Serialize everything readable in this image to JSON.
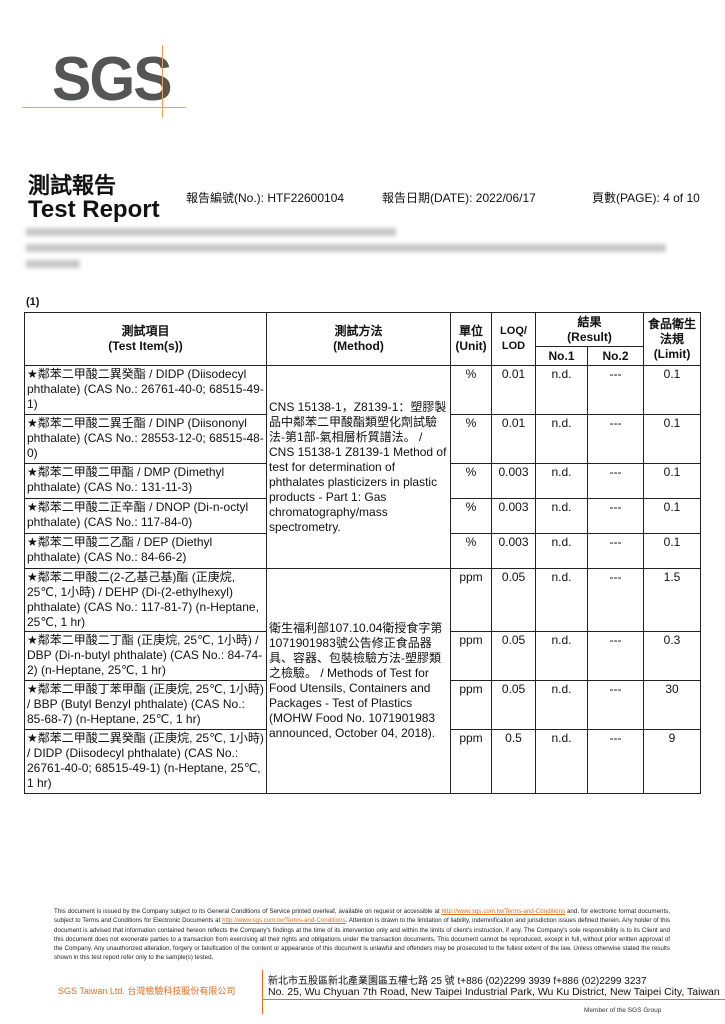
{
  "logo": {
    "text": "SGS",
    "accent": "#f0a050"
  },
  "header": {
    "title_zh": "測試報告",
    "title_en": "Test Report",
    "report_no": "報告編號(No.): HTF22600104",
    "report_date": "報告日期(DATE): 2022/06/17",
    "page": "頁數(PAGE): 4 of 10"
  },
  "section_label": "(1)",
  "table": {
    "headers": {
      "item": "測試項目\n(Test Item(s))",
      "method": "測試方法\n(Method)",
      "unit": "單位\n(Unit)",
      "loq": "LOQ/\nLOD",
      "result": "結果\n(Result)",
      "no1": "No.1",
      "no2": "No.2",
      "limit": "食品衛生\n法規\n(Limit)"
    },
    "methods": [
      "CNS 15138-1，Z8139-1：塑膠製品中鄰苯二甲酸酯類塑化劑試驗法-第1部-氣相層析質譜法。 / CNS 15138-1 Z8139-1 Method of test for determination of phthalates plasticizers in plastic products - Part 1: Gas chromatography/mass spectrometry.",
      "衛生福利部107.10.04衛授食字第1071901983號公告修正食品器具、容器、包裝檢驗方法-塑膠類之檢驗。 / Methods of Test for Food Utensils, Containers and Packages - Test of Plastics (MOHW Food No. 1071901983 announced, October 04, 2018)."
    ],
    "rows": [
      {
        "item": "★鄰苯二甲酸二異癸酯 / DIDP (Diisodecyl phthalate) (CAS No.: 26761-40-0; 68515-49-1)",
        "unit": "%",
        "loq": "0.01",
        "no1": "n.d.",
        "no2": "---",
        "limit": "0.1"
      },
      {
        "item": "★鄰苯二甲酸二異壬酯 / DINP (Diisononyl phthalate) (CAS No.: 28553-12-0; 68515-48-0)",
        "unit": "%",
        "loq": "0.01",
        "no1": "n.d.",
        "no2": "---",
        "limit": "0.1"
      },
      {
        "item": "★鄰苯二甲酸二甲酯 / DMP (Dimethyl phthalate) (CAS No.: 131-11-3)",
        "unit": "%",
        "loq": "0.003",
        "no1": "n.d.",
        "no2": "---",
        "limit": "0.1"
      },
      {
        "item": "★鄰苯二甲酸二正辛酯 / DNOP (Di-n-octyl phthalate) (CAS No.: 117-84-0)",
        "unit": "%",
        "loq": "0.003",
        "no1": "n.d.",
        "no2": "---",
        "limit": "0.1"
      },
      {
        "item": "★鄰苯二甲酸二乙酯 / DEP (Diethyl phthalate) (CAS No.: 84-66-2)",
        "unit": "%",
        "loq": "0.003",
        "no1": "n.d.",
        "no2": "---",
        "limit": "0.1"
      },
      {
        "item": "★鄰苯二甲酸二(2-乙基己基)酯 (正庚烷, 25℃, 1小時) / DEHP (Di-(2-ethylhexyl) phthalate) (CAS No.: 117-81-7) (n-Heptane, 25℃, 1 hr)",
        "unit": "ppm",
        "loq": "0.05",
        "no1": "n.d.",
        "no2": "---",
        "limit": "1.5"
      },
      {
        "item": "★鄰苯二甲酸二丁酯 (正庚烷, 25℃, 1小時) / DBP (Di-n-butyl phthalate) (CAS No.: 84-74-2) (n-Heptane, 25℃, 1 hr)",
        "unit": "ppm",
        "loq": "0.05",
        "no1": "n.d.",
        "no2": "---",
        "limit": "0.3"
      },
      {
        "item": "★鄰苯二甲酸丁苯甲酯 (正庚烷, 25℃, 1小時) / BBP (Butyl Benzyl phthalate) (CAS No.: 85-68-7) (n-Heptane, 25℃, 1 hr)",
        "unit": "ppm",
        "loq": "0.05",
        "no1": "n.d.",
        "no2": "---",
        "limit": "30"
      },
      {
        "item": "★鄰苯二甲酸二異癸酯 (正庚烷, 25℃, 1小時) / DIDP (Diisodecyl phthalate) (CAS No.: 26761-40-0; 68515-49-1) (n-Heptane, 25℃, 1 hr)",
        "unit": "ppm",
        "loq": "0.5",
        "no1": "n.d.",
        "no2": "---",
        "limit": "9"
      }
    ]
  },
  "footer": {
    "disclaimer_1": "This document is issued by the Company subject to its General Conditions of Service printed overleaf, available on request or accessible at ",
    "link": "http://www.sgs.com.tw/Terms-and-Conditions",
    "disclaimer_2": " and, for electronic format documents, subject to Terms and Conditions for Electronic Documents at ",
    "disclaimer_3": ". Attention is drawn to the limitation of liability, indemnification and jurisdiction issues defined therein. Any holder of this document is advised that information contained hereon reflects the Company's findings at the time of its intervention only and within the limits of client's instruction, if any. The Company's sole responsibility is to its Client and this document does not exonerate parties to a transaction from exercising all their rights and obligations under the transaction documents. This document cannot be reproduced, except in full, without prior written approval of the Company. Any unauthorized alteration, forgery or falsification of the content or appearance of this document is unlawful and offenders may be prosecuted to the fullest extent of the law. Unless otherwise stated the results shown in this test report refer only to the sample(s) tested.",
    "company": "SGS Taiwan Ltd.  台灣檢驗科技股份有限公司",
    "address_zh": "新北市五股區新北產業園區五權七路 25 號     t+886 (02)2299 3939     f+886 (02)2299 3237",
    "address_en": "No. 25, Wu Chyuan 7th Road, New Taipei Industrial Park, Wu Ku District, New Taipei City, Taiwan",
    "member": "Member of the SGS Group"
  }
}
